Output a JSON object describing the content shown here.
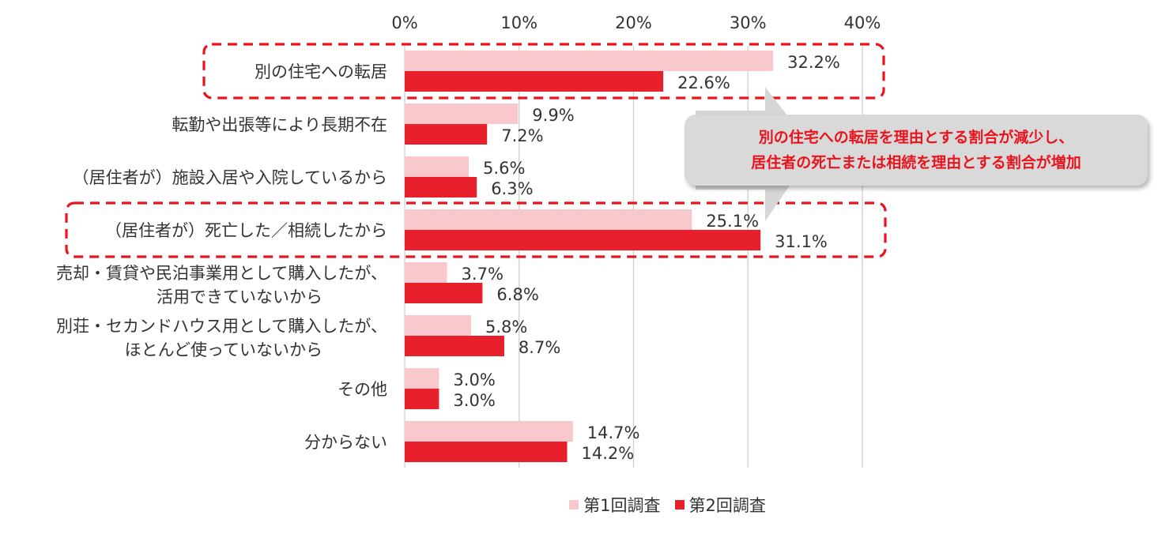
{
  "colors": {
    "series1": "#f8c8cd",
    "series2": "#e8202c",
    "highlight": "#e8141e",
    "text": "#333333",
    "grid": "#d0d0d0",
    "callout_bg": "#d9d9d9",
    "callout_text": "#e8141e"
  },
  "callout": {
    "line1": "別の住宅への転居を理由とする割合が減少し、",
    "line2": "居住者の死亡または相続を理由とする割合が増加"
  },
  "chart_data": {
    "type": "bar",
    "orientation": "horizontal",
    "xlim": [
      0,
      40
    ],
    "ticks": [
      0,
      10,
      20,
      30,
      40
    ],
    "tick_labels": [
      "0%",
      "10%",
      "20%",
      "30%",
      "40%"
    ],
    "categories": [
      [
        "別の住宅への転居"
      ],
      [
        "転勤や出張等により長期不在"
      ],
      [
        "（居住者が）施設入居や入院しているから"
      ],
      [
        "（居住者が）死亡した／相続したから"
      ],
      [
        "売却・賃貸や民泊事業用として購入したが、",
        "活用できていないから"
      ],
      [
        "別荘・セカンドハウス用として購入したが、",
        "ほとんど使っていないから"
      ],
      [
        "その他"
      ],
      [
        "分からない"
      ]
    ],
    "series": [
      {
        "name": "第1回調査",
        "values": [
          32.2,
          9.9,
          5.6,
          25.1,
          3.7,
          5.8,
          3.0,
          14.7
        ],
        "labels": [
          "32.2%",
          "9.9%",
          "5.6%",
          "25.1%",
          "3.7%",
          "5.8%",
          "3.0%",
          "14.7%"
        ]
      },
      {
        "name": "第2回調査",
        "values": [
          22.6,
          7.2,
          6.3,
          31.1,
          6.8,
          8.7,
          3.0,
          14.2
        ],
        "labels": [
          "22.6%",
          "7.2%",
          "6.3%",
          "31.1%",
          "6.8%",
          "8.7%",
          "3.0%",
          "14.2%"
        ]
      }
    ],
    "highlighted_categories": [
      0,
      3
    ],
    "legend_position": "bottom"
  }
}
